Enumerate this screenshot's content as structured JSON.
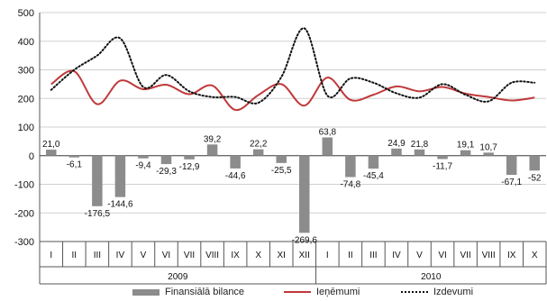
{
  "chart_data": {
    "type": "bar+line",
    "y_ticks": [
      "500",
      "400",
      "300",
      "200",
      "100",
      "0",
      "-100",
      "-200",
      "-300"
    ],
    "ylim": [
      -300,
      500
    ],
    "categories": [
      "I",
      "II",
      "III",
      "IV",
      "V",
      "VI",
      "VII",
      "VIII",
      "IX",
      "X",
      "XI",
      "XII",
      "I",
      "II",
      "III",
      "IV",
      "V",
      "VI",
      "VII",
      "VIII",
      "IX",
      "X"
    ],
    "years": [
      {
        "label": "2009",
        "start": 0,
        "end": 11
      },
      {
        "label": "2010",
        "start": 12,
        "end": 21
      }
    ],
    "bars": {
      "name": "Finansiālā bilance",
      "color": "#8c8c8c",
      "values": [
        21.0,
        -6.1,
        -176.5,
        -144.6,
        -9.4,
        -29.3,
        -12.9,
        39.2,
        -44.6,
        22.2,
        -25.5,
        -269.6,
        63.8,
        -74.8,
        -45.4,
        24.9,
        21.8,
        -11.7,
        19.1,
        10.7,
        -67.1,
        -52
      ],
      "labels": [
        "21,0",
        "-6,1",
        "-176,5",
        "-144,6",
        "-9,4",
        "-29,3",
        "-12,9",
        "39,2",
        "-44,6",
        "22,2",
        "-25,5",
        "-269,6",
        "63,8",
        "-74,8",
        "-45,4",
        "24,9",
        "21,8",
        "-11,7",
        "19,1",
        "10,7",
        "-67,1",
        "-52"
      ]
    },
    "series": [
      {
        "name": "Ieņēmumi",
        "color": "#c0393b",
        "style": "solid",
        "values": [
          250,
          295,
          180,
          262,
          232,
          248,
          215,
          245,
          160,
          212,
          250,
          175,
          273,
          195,
          213,
          242,
          225,
          240,
          217,
          205,
          193,
          203
        ]
      },
      {
        "name": "Izdevumi",
        "color": "#111111",
        "style": "dotted",
        "values": [
          230,
          300,
          350,
          410,
          240,
          282,
          225,
          205,
          205,
          185,
          275,
          445,
          210,
          270,
          255,
          218,
          203,
          250,
          213,
          190,
          255,
          255
        ]
      }
    ],
    "grid": true
  },
  "legend": {
    "bars_label": "Finansiālā bilance",
    "line1_label": "Ieņēmumi",
    "line2_label": "Izdevumi"
  }
}
